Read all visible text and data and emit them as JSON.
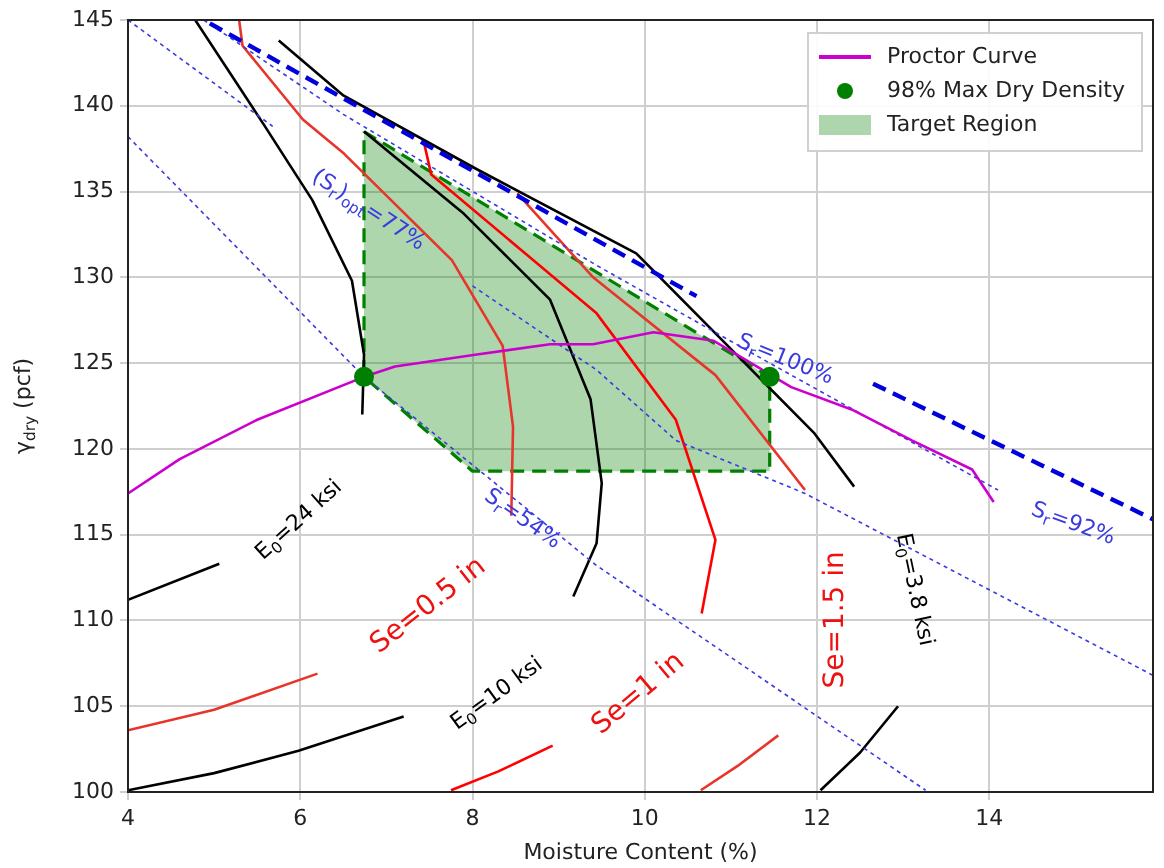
{
  "chart_data": {
    "type": "line",
    "xlabel": "Moisture Content (%)",
    "ylabel": "γ$_{dry}$ (pcf)",
    "xlim": [
      4,
      15.9
    ],
    "xticks": [
      4,
      6,
      8,
      10,
      12,
      14
    ],
    "ylim": [
      100,
      145
    ],
    "yticks": [
      100,
      105,
      110,
      115,
      120,
      125,
      130,
      135,
      140,
      145
    ],
    "grid": true,
    "legend": "top right",
    "series": [
      {
        "name": "Proctor Curve",
        "color": "#cc00cc",
        "line_style": "solid",
        "x": [
          4,
          4.6,
          5.5,
          6.74,
          7.1,
          8.05,
          8.9,
          9.4,
          10.1,
          10.8,
          11.7,
          12.4,
          13.1,
          13.8,
          14.05
        ],
        "values": [
          117.4,
          119.4,
          121.7,
          124.2,
          124.8,
          125.5,
          126.1,
          126.1,
          126.8,
          126.3,
          123.6,
          122.3,
          120.5,
          118.8,
          116.9
        ]
      },
      {
        "name": "98% Max Dry Density",
        "type": "scatter",
        "color": "#008000",
        "marker": "circle",
        "x": [
          6.74,
          11.45
        ],
        "values": [
          124.2,
          124.2
        ]
      },
      {
        "name": "Target Region",
        "type": "area",
        "color": "#008000",
        "line_style": "dashed",
        "x": [
          6.74,
          11.45,
          11.45,
          8.0,
          6.74,
          6.74
        ],
        "values": [
          138.5,
          124.2,
          118.7,
          118.7,
          124.2,
          138.5
        ]
      },
      {
        "type": "line",
        "color": "#0000dd",
        "line_style": "dashed",
        "x": [
          4.95,
          10.6,
          11.6,
          12.65,
          15.9
        ],
        "values": [
          144.8,
          128.9,
          null,
          123.8,
          115.9
        ]
      },
      {
        "type": "line",
        "color": "#3a3ae0",
        "line_style": "dotted",
        "x": [
          4,
          6.74,
          9.44,
          13.26
        ],
        "values": [
          138.2,
          124.2,
          113.2,
          100.1
        ]
      },
      {
        "type": "line",
        "color": "#3a3ae0",
        "line_style": "dotted",
        "x": [
          4,
          5.68,
          6.8,
          8.0,
          9.44,
          10.36,
          11.86,
          15.9
        ],
        "values": [
          145,
          138.8,
          null,
          129.5,
          124.6,
          120.5,
          117.4,
          106.8
        ]
      },
      {
        "type": "line",
        "color": "#3a3ae0",
        "line_style": "dotted",
        "x": [
          4.88,
          6.5,
          9.44,
          11.45,
          14.1
        ],
        "values": [
          145,
          139.5,
          130.7,
          125.0,
          117.6
        ]
      },
      {
        "type": "line",
        "color": "#000000",
        "line_style": "solid",
        "x": [
          4.78,
          5.59,
          6.14,
          6.6,
          6.74,
          6.72
        ],
        "values": [
          145,
          138.8,
          134.5,
          129.8,
          125.5,
          122
        ]
      },
      {
        "type": "line",
        "color": "#000000",
        "line_style": "solid",
        "x": [
          4,
          5.06
        ],
        "values": [
          111.2,
          113.3
        ]
      },
      {
        "type": "line",
        "color": "#000000",
        "line_style": "solid",
        "x": [
          5.75,
          6.5,
          8.05,
          9.9,
          11.28,
          11.97,
          12.43
        ],
        "values": [
          143.8,
          140.6,
          136.3,
          131.4,
          124.4,
          120.9,
          117.8
        ]
      },
      {
        "type": "line",
        "color": "#000000",
        "line_style": "solid",
        "x": [
          6.74,
          7.9,
          8.9,
          9.37,
          9.5,
          9.44,
          9.17
        ],
        "values": [
          138.5,
          133.7,
          128.7,
          122.9,
          118,
          114.5,
          111.4
        ]
      },
      {
        "type": "line",
        "color": "#000000",
        "line_style": "solid",
        "x": [
          4,
          5,
          5.98,
          7.2
        ],
        "values": [
          100.1,
          101.1,
          102.4,
          104.4
        ]
      },
      {
        "type": "line",
        "color": "#000000",
        "line_style": "solid",
        "x": [
          12.04,
          12.5,
          12.94
        ],
        "values": [
          100.1,
          102.3,
          105.0
        ]
      },
      {
        "type": "line",
        "color": "#e8352b",
        "line_style": "solid",
        "x": [
          5.29,
          5.33,
          6.03,
          6.51,
          7.76,
          8.35,
          8.47,
          8.45
        ],
        "values": [
          145,
          143.5,
          139.2,
          137.2,
          131,
          126,
          121.3,
          116.1
        ]
      },
      {
        "type": "line",
        "color": "#ff0000",
        "line_style": "solid",
        "x": [
          7.43,
          7.52,
          9.44,
          10.36,
          10.82,
          10.66
        ],
        "values": [
          138,
          136,
          127.9,
          121.7,
          114.7,
          110.4
        ]
      },
      {
        "type": "line",
        "color": "#e8352b",
        "line_style": "solid",
        "x": [
          8.52,
          9.4,
          10.82,
          11.86
        ],
        "values": [
          134.9,
          130,
          124.3,
          117.6
        ]
      },
      {
        "type": "line",
        "color": "#e8352b",
        "line_style": "solid",
        "x": [
          4,
          5,
          6.2
        ],
        "values": [
          103.6,
          104.8,
          106.9
        ]
      },
      {
        "type": "line",
        "color": "#ff0000",
        "line_style": "solid",
        "x": [
          7.75,
          8.3,
          8.93
        ],
        "values": [
          100.1,
          101.2,
          102.7
        ]
      },
      {
        "type": "line",
        "color": "#e8352b",
        "line_style": "solid",
        "x": [
          10.65,
          11.1,
          11.55
        ],
        "values": [
          100.1,
          101.6,
          103.3
        ]
      }
    ],
    "annotations": [
      {
        "text": "(S$_{r}$)$_{opt}$=77%",
        "x": 6.79,
        "y": 133.9
      },
      {
        "text": "S$_{r}$=100%",
        "x": 11.63,
        "y": 125.2
      },
      {
        "text": "S$_{r}$=54%",
        "x": 8.58,
        "y": 115.9
      },
      "S$_{r}$=92%",
      "E$_{0}$=24 ksi",
      "Se=0.5 in",
      "E$_{0}$=10 ksi",
      "Se=1 in",
      "Se=1.5 in",
      "E$_{0}$=3.8 ksi"
    ]
  }
}
